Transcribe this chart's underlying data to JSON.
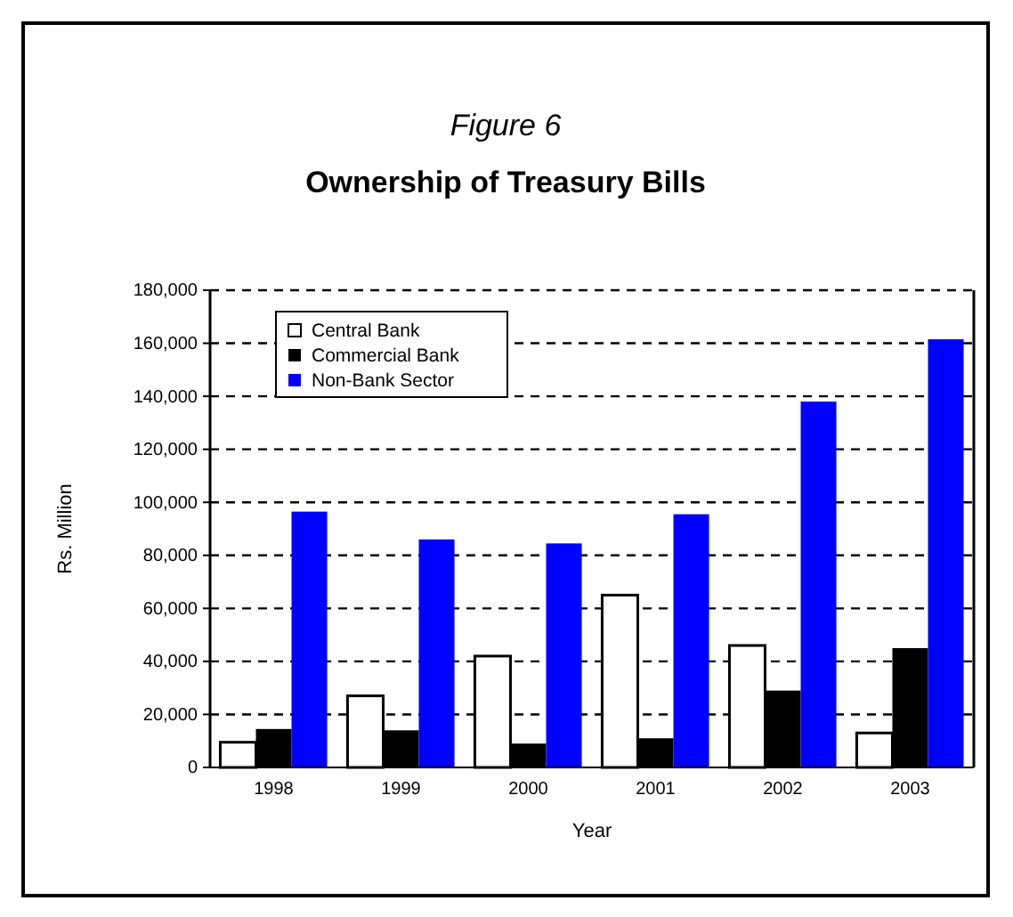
{
  "chart_data": {
    "type": "bar",
    "title": "Figure 6",
    "subtitle": "Ownership of Treasury Bills",
    "xlabel": "Year",
    "ylabel": "Rs. Million",
    "categories": [
      "1998",
      "1999",
      "2000",
      "2001",
      "2002",
      "2003"
    ],
    "series": [
      {
        "name": "Central Bank",
        "color": "#ffffff",
        "values": [
          9500,
          27000,
          42000,
          65000,
          46000,
          13000
        ]
      },
      {
        "name": "Commercial Bank",
        "color": "#000000",
        "values": [
          14500,
          14000,
          9000,
          11000,
          29000,
          45000
        ]
      },
      {
        "name": "Non-Bank Sector",
        "color": "#0000ff",
        "values": [
          96500,
          86000,
          84500,
          95500,
          138000,
          161500
        ]
      }
    ],
    "ylim": [
      0,
      180000
    ],
    "yticks": [
      {
        "value": 0,
        "label": "0"
      },
      {
        "value": 20000,
        "label": "20,000"
      },
      {
        "value": 40000,
        "label": "40,000"
      },
      {
        "value": 60000,
        "label": "60,000"
      },
      {
        "value": 80000,
        "label": "80,000"
      },
      {
        "value": 100000,
        "label": "100,000"
      },
      {
        "value": 120000,
        "label": "120,000"
      },
      {
        "value": 140000,
        "label": "140,000"
      },
      {
        "value": 160000,
        "label": "160,000"
      },
      {
        "value": 180000,
        "label": "180,000"
      }
    ],
    "grid": "y",
    "legend": "top left"
  }
}
